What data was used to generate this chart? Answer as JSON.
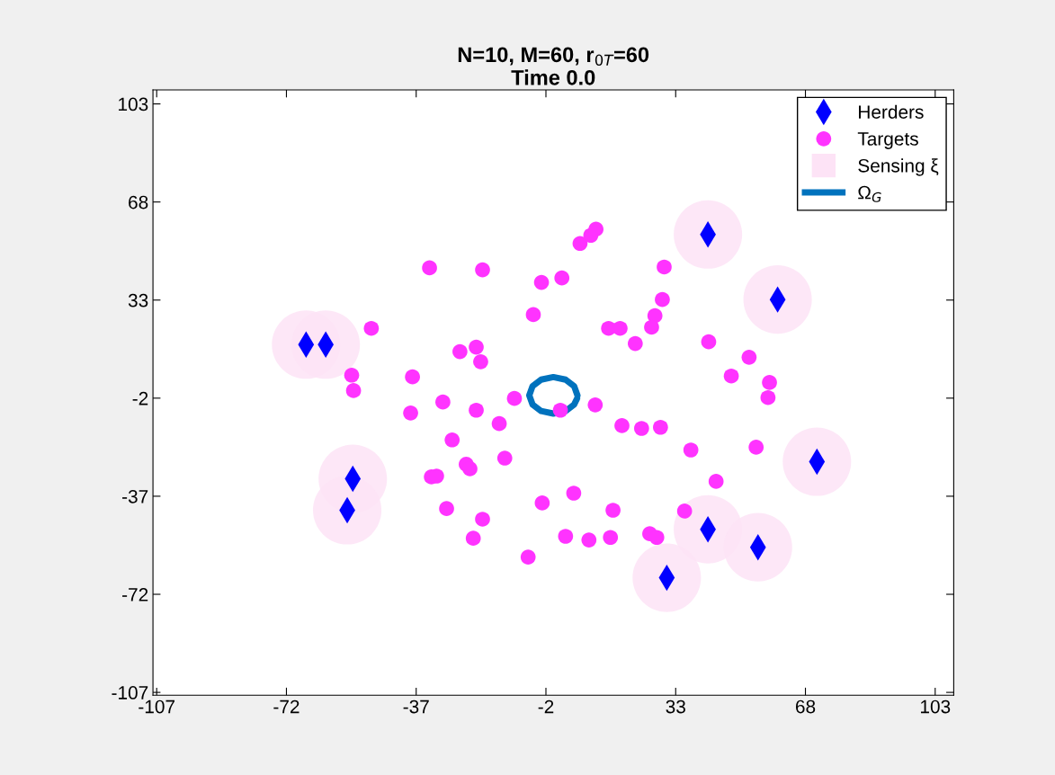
{
  "chart_data": {
    "type": "scatter",
    "title": "N=10, M=60, r$_{0T}$=60",
    "subtitle": "Time 0.0",
    "xlim": [
      -108,
      108
    ],
    "ylim": [
      -108,
      108
    ],
    "xticks": [
      -107,
      -72,
      -37,
      -2,
      33,
      68,
      103
    ],
    "yticks": [
      -107,
      -72,
      -37,
      -2,
      33,
      68,
      103
    ],
    "grid": false,
    "legend": "top right",
    "series": [
      {
        "name": "Herders",
        "marker": "diamond",
        "color": "#0000ff",
        "x": [
          -66.7,
          -61.4,
          41.7,
          60.5,
          71.1,
          -54.1,
          -55.6,
          41.7,
          55.2,
          30.6
        ],
        "values": [
          17.1,
          17.1,
          56.4,
          33.2,
          -24.7,
          -30.8,
          -42,
          -48.8,
          -55.2,
          -66.1
        ]
      },
      {
        "name": "Targets",
        "marker": "circle",
        "color": "#ff33ff",
        "x": [
          -33.4,
          -19.1,
          -3.2,
          2.3,
          7.2,
          10.1,
          11.5,
          29.9,
          29.4,
          27.4,
          26.5,
          14.9,
          18.0,
          22.1,
          -5.4,
          -49.1,
          41.9,
          52.8,
          48.0,
          58.3,
          57.9,
          -25.2,
          -20.8,
          -19.6,
          -54.4,
          -53.9,
          -38.0,
          -38.5,
          -29.8,
          -20.8,
          -10.5,
          1.9,
          11.3,
          -14.6,
          -27.3,
          18.5,
          23.8,
          28.9,
          37.1,
          54.7,
          -13.1,
          -23.5,
          -22.5,
          -32.9,
          -31.5,
          43.9,
          5.5,
          -3.0,
          -28.8,
          -19.1,
          16.1,
          35.4,
          -21.6,
          3.3,
          9.6,
          15.4,
          26.0,
          27.9,
          -6.8
        ],
        "values": [
          44.5,
          43.8,
          39.3,
          40.9,
          53.2,
          56.1,
          58.3,
          44.8,
          33.2,
          27.4,
          23.3,
          22.9,
          22.9,
          17.5,
          27.8,
          22.9,
          18.1,
          12.6,
          5.9,
          3.6,
          -1.8,
          14.6,
          16.2,
          11.0,
          6.2,
          0.7,
          5.6,
          -7.3,
          -3.4,
          -6.3,
          -2.1,
          -6.3,
          -4.4,
          -11.1,
          -16.9,
          -11.8,
          -12.8,
          -12.4,
          -20.5,
          -19.5,
          -23.4,
          -25.6,
          -27.2,
          -30.1,
          -29.8,
          -31.7,
          -35.9,
          -39.4,
          -41.4,
          -45.2,
          -42.0,
          -42.3,
          -52.0,
          -51.3,
          -52.6,
          -51.7,
          -50.4,
          -51.7,
          -58.7
        ]
      },
      {
        "name": "Sensing ξ",
        "type": "bubble",
        "color": "#fde3f6",
        "x": [
          -66.7,
          -61.4,
          41.7,
          60.5,
          71.1,
          -54.1,
          -55.6,
          41.7,
          55.2,
          30.6
        ],
        "values": [
          17.1,
          17.1,
          56.4,
          33.2,
          -24.7,
          -30.8,
          -42,
          -48.8,
          -55.2,
          -66.1
        ],
        "sizes": [
          1,
          1,
          1,
          1,
          1,
          1,
          1,
          1,
          1,
          1
        ]
      },
      {
        "name": "Ω$_{G}$",
        "type": "line",
        "color": "#0072bd",
        "x": [
          6.5,
          5.6,
          3.3,
          0,
          -3.3,
          -5.6,
          -6.5,
          -5.6,
          -3.3,
          0,
          3.3,
          5.6,
          6.4
        ],
        "values": [
          -1,
          2.3,
          4.6,
          5.5,
          4.6,
          2.3,
          -1,
          -4.3,
          -6.6,
          -7.5,
          -6.6,
          -4.3,
          -2.1
        ]
      }
    ]
  }
}
